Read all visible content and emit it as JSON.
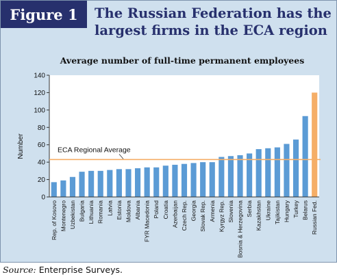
{
  "figure": {
    "badge": "Figure 1",
    "title_line1": "The Russian Federation has the",
    "title_line2": "largest firms in the ECA region",
    "source_label": "Source:",
    "source_text": " Enterprise Surveys."
  },
  "chart_data": {
    "type": "bar",
    "title": "Average number of full-time permanent employees",
    "xlabel": "",
    "ylabel": "Number",
    "ylim": [
      0,
      140
    ],
    "yticks": [
      0,
      20,
      40,
      60,
      80,
      100,
      120,
      140
    ],
    "grid": false,
    "categories": [
      "Rep. of Kosovo",
      "Montenegro",
      "Uzbekistan",
      "Bulgaria",
      "Lithuania",
      "Romania",
      "Latvia",
      "Estonia",
      "Moldova",
      "Albania",
      "FYR Macedonia",
      "Poland",
      "Croatia",
      "Azerbaijan",
      "Czech Rep.",
      "Georgia",
      "Slovak Rep.",
      "Armenia",
      "Kyrgyz Rep.",
      "Slovenia",
      "Bosnia & Herzegovina",
      "Serbia",
      "Kazakhstan",
      "Ukraine",
      "Tajikistan",
      "Hungary",
      "Turkey",
      "Belarus",
      "Russian Fed."
    ],
    "values": [
      17,
      19,
      23,
      29,
      30,
      30,
      31,
      32,
      32,
      33,
      34,
      34,
      36,
      37,
      38,
      39,
      40,
      40,
      46,
      47,
      48,
      50,
      55,
      56,
      57,
      61,
      66,
      93,
      120
    ],
    "bar_color": "#5b9bd5",
    "highlight": {
      "category": "Russian Fed.",
      "color": "#f5ae67"
    },
    "reference_line": {
      "label": "ECA Regional Average",
      "value": 43,
      "color": "#f5ae67"
    }
  }
}
